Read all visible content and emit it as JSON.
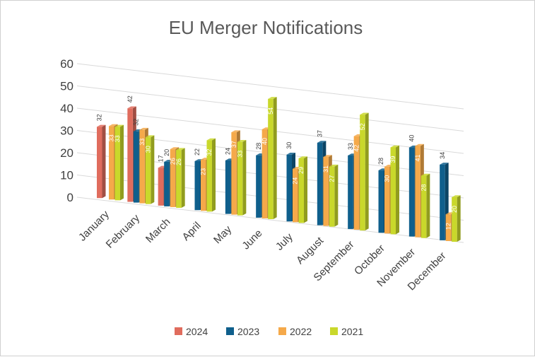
{
  "chart_data": {
    "type": "bar",
    "title": "EU Merger Notifications",
    "xlabel": "",
    "ylabel": "",
    "ylim": [
      0,
      60
    ],
    "yticks": [
      0,
      10,
      20,
      30,
      40,
      50,
      60
    ],
    "grid": true,
    "legend_position": "bottom",
    "categories": [
      "January",
      "February",
      "March",
      "April",
      "May",
      "June",
      "July",
      "August",
      "September",
      "October",
      "November",
      "December"
    ],
    "series": [
      {
        "name": "2024",
        "color": "#e06c5d",
        "values": [
          32,
          42,
          17,
          null,
          null,
          null,
          null,
          null,
          null,
          null,
          null,
          null
        ]
      },
      {
        "name": "2023",
        "color": "#0f5f8c",
        "values": [
          null,
          32,
          20,
          22,
          24,
          28,
          30,
          37,
          33,
          28,
          40,
          34
        ]
      },
      {
        "name": "2022",
        "color": "#f5a94a",
        "values": [
          33,
          33,
          26,
          23,
          37,
          40,
          24,
          31,
          42,
          30,
          41,
          12
        ]
      },
      {
        "name": "2021",
        "color": "#c9d82b",
        "values": [
          33,
          30,
          26,
          32,
          33,
          54,
          29,
          27,
          52,
          39,
          28,
          20
        ]
      }
    ]
  }
}
